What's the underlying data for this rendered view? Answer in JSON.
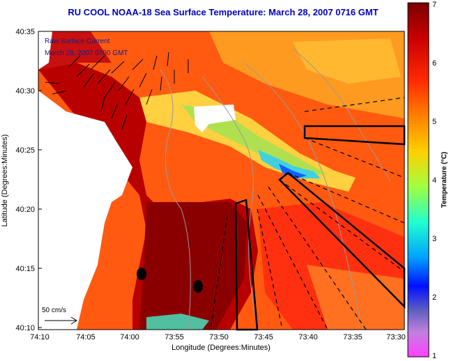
{
  "title": "RU COOL  NOAA-18  Sea Surface Temperature:  March 28, 2007 0716 GMT",
  "overlay_text": {
    "line1": "Raw Surface Current",
    "line2": "March 28, 2007 0700 GMT"
  },
  "axes": {
    "xlabel": "Longitude (Degrees:Minutes)",
    "ylabel": "Latitude (Degrees:Minutes)",
    "x_ticks": [
      "74:10",
      "74:05",
      "74:00",
      "73:55",
      "73:50",
      "73:45",
      "73:40",
      "73:35",
      "73:30"
    ],
    "y_ticks": [
      "40:35",
      "40:30",
      "40:25",
      "40:20",
      "40:15",
      "40:10"
    ]
  },
  "scale_vector": {
    "label": "50 cm/s"
  },
  "colorbar": {
    "label": "Temperature (°C)",
    "ticks": [
      "7",
      "6",
      "5",
      "4",
      "3",
      "2",
      "1"
    ],
    "min": 1,
    "max": 7
  },
  "colors": {
    "title": "#0000c0",
    "overlay_text": "#1a1a80",
    "land": "#ffffff",
    "box_outline": "#000000"
  }
}
